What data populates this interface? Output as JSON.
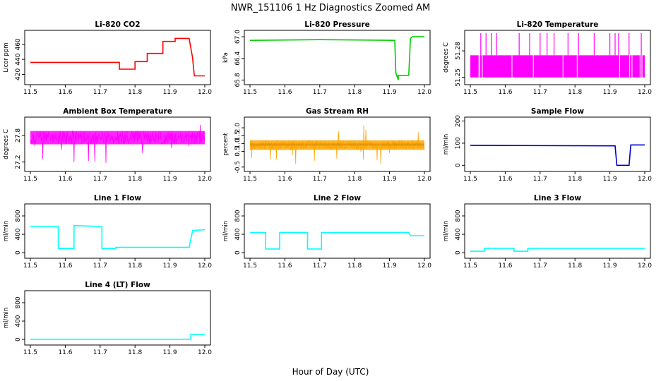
{
  "figure": {
    "title": "NWR_151106  1 Hz Diagnostics Zoomed AM",
    "xlabel": "Hour of Day (UTC)"
  },
  "chart_data": [
    {
      "type": "line",
      "title": "Li-820 CO2",
      "ylabel": "Licor ppm",
      "color": "#ff0000",
      "xlim": [
        11.5,
        12.0
      ],
      "ylim": [
        410,
        475
      ],
      "xticks": [
        "11.5",
        "11.6",
        "11.7",
        "11.8",
        "11.9",
        "12.0"
      ],
      "yticks": [
        "420",
        "440",
        "460"
      ],
      "series": [
        {
          "x": [
            11.5,
            11.755,
            11.755,
            11.8,
            11.8,
            11.835,
            11.835,
            11.88,
            11.88,
            11.915,
            11.915,
            11.955,
            11.965,
            11.97,
            12.0
          ],
          "y": [
            436,
            436,
            427,
            427,
            437,
            437,
            448,
            448,
            464,
            464,
            468,
            468,
            442,
            418,
            418
          ]
        }
      ]
    },
    {
      "type": "line",
      "title": "Li-820 Pressure",
      "ylabel": "kPa",
      "color": "#00cc00",
      "xlim": [
        11.5,
        12.0
      ],
      "ylim": [
        65.75,
        67.1
      ],
      "xticks": [
        "11.5",
        "11.6",
        "11.7",
        "11.8",
        "11.9",
        "12.0"
      ],
      "yticks": [
        "65.8",
        "66.4",
        "67.0"
      ],
      "series": [
        {
          "x": [
            11.5,
            11.7,
            11.915,
            11.918,
            11.925,
            11.925,
            11.955,
            11.96,
            11.965,
            12.0
          ],
          "y": [
            66.9,
            66.92,
            66.9,
            66.0,
            65.8,
            65.93,
            65.93,
            66.95,
            67.0,
            67.0
          ]
        }
      ]
    },
    {
      "type": "line",
      "title": "Li-820 Temperature",
      "ylabel": "degrees C",
      "color": "#ff00ff",
      "xlim": [
        11.5,
        12.0
      ],
      "ylim": [
        51.245,
        51.3
      ],
      "xticks": [
        "11.5",
        "11.6",
        "11.7",
        "11.8",
        "11.9",
        "12.0"
      ],
      "yticks": [
        "51.25",
        "51.28"
      ],
      "band": [
        51.25,
        51.275
      ],
      "spikes_to": 51.3,
      "spike_x": [
        11.53,
        11.545,
        11.56,
        11.575,
        11.64,
        11.67,
        11.7,
        11.72,
        11.74,
        11.78,
        11.81,
        11.855,
        11.9,
        11.915,
        11.925,
        11.955,
        11.99
      ]
    },
    {
      "type": "line",
      "title": "Ambient Box Temperature",
      "ylabel": "degrees C",
      "color": "#ff00ff",
      "xlim": [
        11.5,
        12.0
      ],
      "ylim": [
        27.05,
        28.15
      ],
      "xticks": [
        "11.5",
        "11.6",
        "11.7",
        "11.8",
        "11.9",
        "12.0"
      ],
      "yticks": [
        "27.2",
        "27.8"
      ],
      "band": [
        27.6,
        27.9
      ],
      "noise_range": [
        27.15,
        28.1
      ]
    },
    {
      "type": "line",
      "title": "Gas Stream RH",
      "ylabel": "percent",
      "color": "#ffa500",
      "xlim": [
        11.5,
        12.0
      ],
      "ylim": [
        -0.6,
        2.5
      ],
      "xticks": [
        "11.5",
        "11.6",
        "11.7",
        "11.8",
        "11.9",
        "12.0"
      ],
      "yticks": [
        "-0.5",
        "0.5",
        "1.0",
        "1.5",
        "2.0"
      ],
      "band": [
        0.6,
        1.2
      ],
      "noise_range": [
        -0.5,
        2.3
      ]
    },
    {
      "type": "line",
      "title": "Sample Flow",
      "ylabel": "ml/min",
      "color": "#0000cc",
      "xlim": [
        11.5,
        12.0
      ],
      "ylim": [
        -15,
        205
      ],
      "xticks": [
        "11.5",
        "11.6",
        "11.7",
        "11.8",
        "11.9",
        "12.0"
      ],
      "yticks": [
        "0",
        "100",
        "200"
      ],
      "series": [
        {
          "x": [
            11.5,
            11.915,
            11.92,
            11.955,
            11.96,
            12.0
          ],
          "y": [
            90,
            88,
            0,
            0,
            92,
            92
          ]
        }
      ]
    },
    {
      "type": "line",
      "title": "Line 1 Flow",
      "ylabel": "ml/min",
      "color": "#00ffff",
      "xlim": [
        11.5,
        12.0
      ],
      "ylim": [
        -60,
        1000
      ],
      "xticks": [
        "11.5",
        "11.6",
        "11.7",
        "11.8",
        "11.9",
        "12.0"
      ],
      "yticks": [
        "0",
        "400",
        "800"
      ],
      "series": [
        {
          "x": [
            11.5,
            11.58,
            11.58,
            11.625,
            11.625,
            11.705,
            11.705,
            11.745,
            11.745,
            11.955,
            11.965,
            12.0
          ],
          "y": [
            570,
            570,
            90,
            90,
            590,
            570,
            90,
            90,
            115,
            115,
            480,
            500
          ]
        }
      ]
    },
    {
      "type": "line",
      "title": "Line 2 Flow",
      "ylabel": "ml/min",
      "color": "#00ffff",
      "xlim": [
        11.5,
        12.0
      ],
      "ylim": [
        -60,
        1000
      ],
      "xticks": [
        "11.5",
        "11.6",
        "11.7",
        "11.8",
        "11.9",
        "12.0"
      ],
      "yticks": [
        "0",
        "400",
        "800"
      ],
      "series": [
        {
          "x": [
            11.5,
            11.545,
            11.545,
            11.585,
            11.585,
            11.665,
            11.665,
            11.705,
            11.705,
            11.955,
            11.96,
            12.0
          ],
          "y": [
            440,
            440,
            80,
            80,
            440,
            440,
            80,
            80,
            440,
            440,
            370,
            370
          ]
        }
      ]
    },
    {
      "type": "line",
      "title": "Line 3 Flow",
      "ylabel": "ml/min",
      "color": "#00ffff",
      "xlim": [
        11.5,
        12.0
      ],
      "ylim": [
        -60,
        1000
      ],
      "xticks": [
        "11.5",
        "11.6",
        "11.7",
        "11.8",
        "11.9",
        "12.0"
      ],
      "yticks": [
        "0",
        "400",
        "800"
      ],
      "series": [
        {
          "x": [
            11.5,
            11.54,
            11.54,
            11.625,
            11.625,
            11.665,
            11.665,
            12.0
          ],
          "y": [
            30,
            30,
            95,
            95,
            30,
            30,
            95,
            95
          ]
        }
      ]
    },
    {
      "type": "line",
      "title": "Line 4 (LT) Flow",
      "ylabel": "ml/min",
      "color": "#00ffff",
      "xlim": [
        11.5,
        12.0
      ],
      "ylim": [
        -60,
        1000
      ],
      "xticks": [
        "11.5",
        "11.6",
        "11.7",
        "11.8",
        "11.9",
        "12.0"
      ],
      "yticks": [
        "0",
        "400",
        "800"
      ],
      "series": [
        {
          "x": [
            11.5,
            11.96,
            11.96,
            12.0
          ],
          "y": [
            5,
            5,
            110,
            110
          ]
        }
      ]
    }
  ]
}
